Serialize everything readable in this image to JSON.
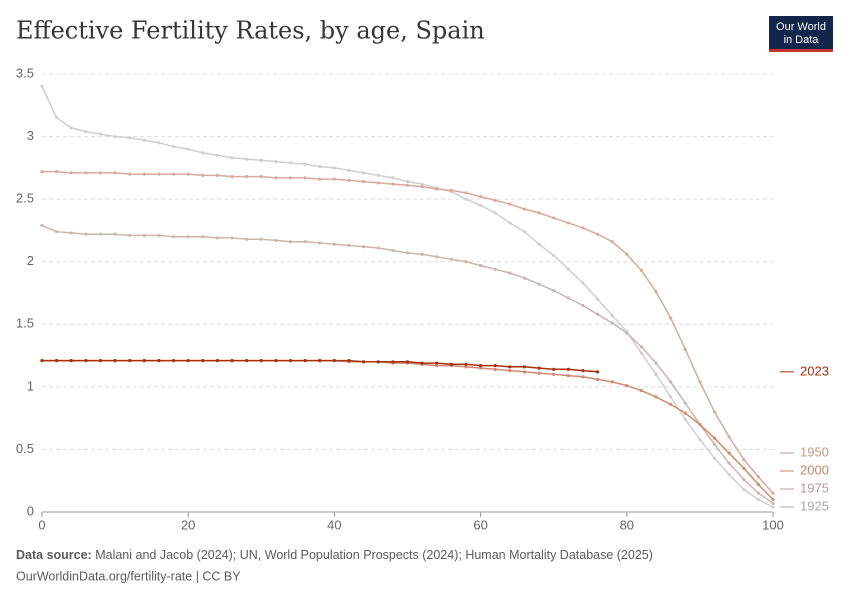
{
  "chart_data": {
    "type": "line",
    "title": "Effective Fertility Rates, by age, Spain",
    "logo": [
      "Our World",
      "in Data"
    ],
    "source_label": "Data source:",
    "source": "Malani and Jacob (2024); UN, World Population Prospects (2024); Human Mortality Database (2025)",
    "footer": "OurWorldinData.org/fertility-rate | CC BY",
    "x": [
      0,
      2,
      4,
      6,
      8,
      10,
      12,
      14,
      16,
      18,
      20,
      22,
      24,
      26,
      28,
      30,
      32,
      34,
      36,
      38,
      40,
      42,
      44,
      46,
      48,
      50,
      52,
      54,
      56,
      58,
      60,
      62,
      64,
      66,
      68,
      70,
      72,
      74,
      76,
      78,
      80,
      82,
      84,
      86,
      88,
      90,
      92,
      94,
      96,
      98,
      100
    ],
    "xlim": [
      0,
      100
    ],
    "xticks": [
      0,
      20,
      40,
      60,
      80,
      100
    ],
    "ylim": [
      0,
      3.5
    ],
    "yticks": [
      0,
      0.5,
      1,
      1.5,
      2,
      2.5,
      3,
      3.5
    ],
    "grid": true,
    "series": [
      {
        "name": "1925",
        "color": "#cfcfcf",
        "label_color": "#a9a9a9",
        "values": [
          3.4,
          3.15,
          3.07,
          3.04,
          3.02,
          3.0,
          2.99,
          2.97,
          2.95,
          2.92,
          2.9,
          2.87,
          2.85,
          2.83,
          2.82,
          2.81,
          2.8,
          2.79,
          2.78,
          2.76,
          2.75,
          2.73,
          2.71,
          2.69,
          2.67,
          2.64,
          2.62,
          2.59,
          2.56,
          2.5,
          2.45,
          2.39,
          2.31,
          2.24,
          2.14,
          2.05,
          1.94,
          1.83,
          1.7,
          1.57,
          1.44,
          1.27,
          1.1,
          0.92,
          0.74,
          0.58,
          0.43,
          0.3,
          0.18,
          0.1,
          0.04
        ]
      },
      {
        "name": "1950",
        "color": "#d6ab9c",
        "label_color": "#c99a88",
        "values": [
          2.72,
          2.72,
          2.71,
          2.71,
          2.71,
          2.71,
          2.7,
          2.7,
          2.7,
          2.7,
          2.7,
          2.69,
          2.69,
          2.68,
          2.68,
          2.68,
          2.67,
          2.67,
          2.67,
          2.66,
          2.66,
          2.65,
          2.64,
          2.63,
          2.62,
          2.61,
          2.6,
          2.58,
          2.57,
          2.55,
          2.52,
          2.49,
          2.46,
          2.42,
          2.39,
          2.35,
          2.31,
          2.27,
          2.22,
          2.16,
          2.06,
          1.93,
          1.76,
          1.55,
          1.3,
          1.04,
          0.8,
          0.6,
          0.42,
          0.28,
          0.15
        ]
      },
      {
        "name": "1975",
        "color": "#cbb6ae",
        "label_color": "#b09e98",
        "values": [
          2.29,
          2.24,
          2.23,
          2.22,
          2.22,
          2.22,
          2.21,
          2.21,
          2.21,
          2.2,
          2.2,
          2.2,
          2.19,
          2.19,
          2.18,
          2.18,
          2.17,
          2.16,
          2.16,
          2.15,
          2.14,
          2.13,
          2.12,
          2.11,
          2.09,
          2.07,
          2.06,
          2.04,
          2.02,
          2.0,
          1.97,
          1.94,
          1.91,
          1.87,
          1.82,
          1.77,
          1.71,
          1.65,
          1.58,
          1.51,
          1.43,
          1.32,
          1.19,
          1.04,
          0.87,
          0.7,
          0.54,
          0.39,
          0.26,
          0.15,
          0.07
        ]
      },
      {
        "name": "2000",
        "color": "#cf8a70",
        "label_color": "#c8876c",
        "values": [
          1.21,
          1.21,
          1.21,
          1.21,
          1.21,
          1.21,
          1.21,
          1.21,
          1.21,
          1.21,
          1.21,
          1.21,
          1.21,
          1.21,
          1.21,
          1.21,
          1.21,
          1.21,
          1.21,
          1.21,
          1.21,
          1.2,
          1.2,
          1.2,
          1.19,
          1.19,
          1.18,
          1.17,
          1.17,
          1.16,
          1.15,
          1.14,
          1.13,
          1.12,
          1.11,
          1.1,
          1.09,
          1.08,
          1.06,
          1.04,
          1.01,
          0.97,
          0.92,
          0.86,
          0.79,
          0.7,
          0.59,
          0.47,
          0.35,
          0.22,
          0.1
        ]
      },
      {
        "name": "2023",
        "color": "#a8300e",
        "label_color": "#a8300e",
        "values": [
          1.21,
          1.21,
          1.21,
          1.21,
          1.21,
          1.21,
          1.21,
          1.21,
          1.21,
          1.21,
          1.21,
          1.21,
          1.21,
          1.21,
          1.21,
          1.21,
          1.21,
          1.21,
          1.21,
          1.21,
          1.21,
          1.21,
          1.2,
          1.2,
          1.2,
          1.2,
          1.19,
          1.19,
          1.18,
          1.18,
          1.17,
          1.17,
          1.16,
          1.16,
          1.15,
          1.14,
          1.14,
          1.13,
          1.12,
          null,
          null,
          null,
          null,
          null,
          null,
          null,
          null,
          null,
          null,
          null,
          null
        ]
      }
    ]
  }
}
